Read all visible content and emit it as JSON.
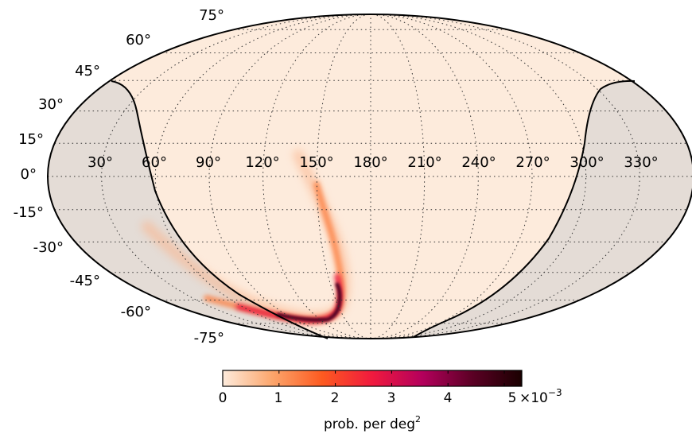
{
  "map": {
    "projection": "mollweide",
    "background_color": "#fdebdc",
    "shaded_region_color": "#e4dcd6",
    "graticule_style": "dotted",
    "latitude_labels": [
      "75°",
      "60°",
      "45°",
      "30°",
      "15°",
      "0°",
      "-15°",
      "-30°",
      "-45°",
      "-60°",
      "-75°"
    ],
    "longitude_labels": [
      "30°",
      "60°",
      "90°",
      "120°",
      "150°",
      "180°",
      "210°",
      "240°",
      "270°",
      "300°",
      "330°"
    ]
  },
  "colorbar": {
    "colors": [
      "#fdebdc",
      "#fca56b",
      "#fd5a20",
      "#f01a3e",
      "#b4005c",
      "#5c0025",
      "#1a0000"
    ],
    "tick_labels": [
      "0",
      "1",
      "2",
      "3",
      "4",
      "5"
    ],
    "exponent_label": "×10",
    "exponent_power": "−3",
    "label_text": "prob. per deg",
    "label_superscript": "2"
  }
}
